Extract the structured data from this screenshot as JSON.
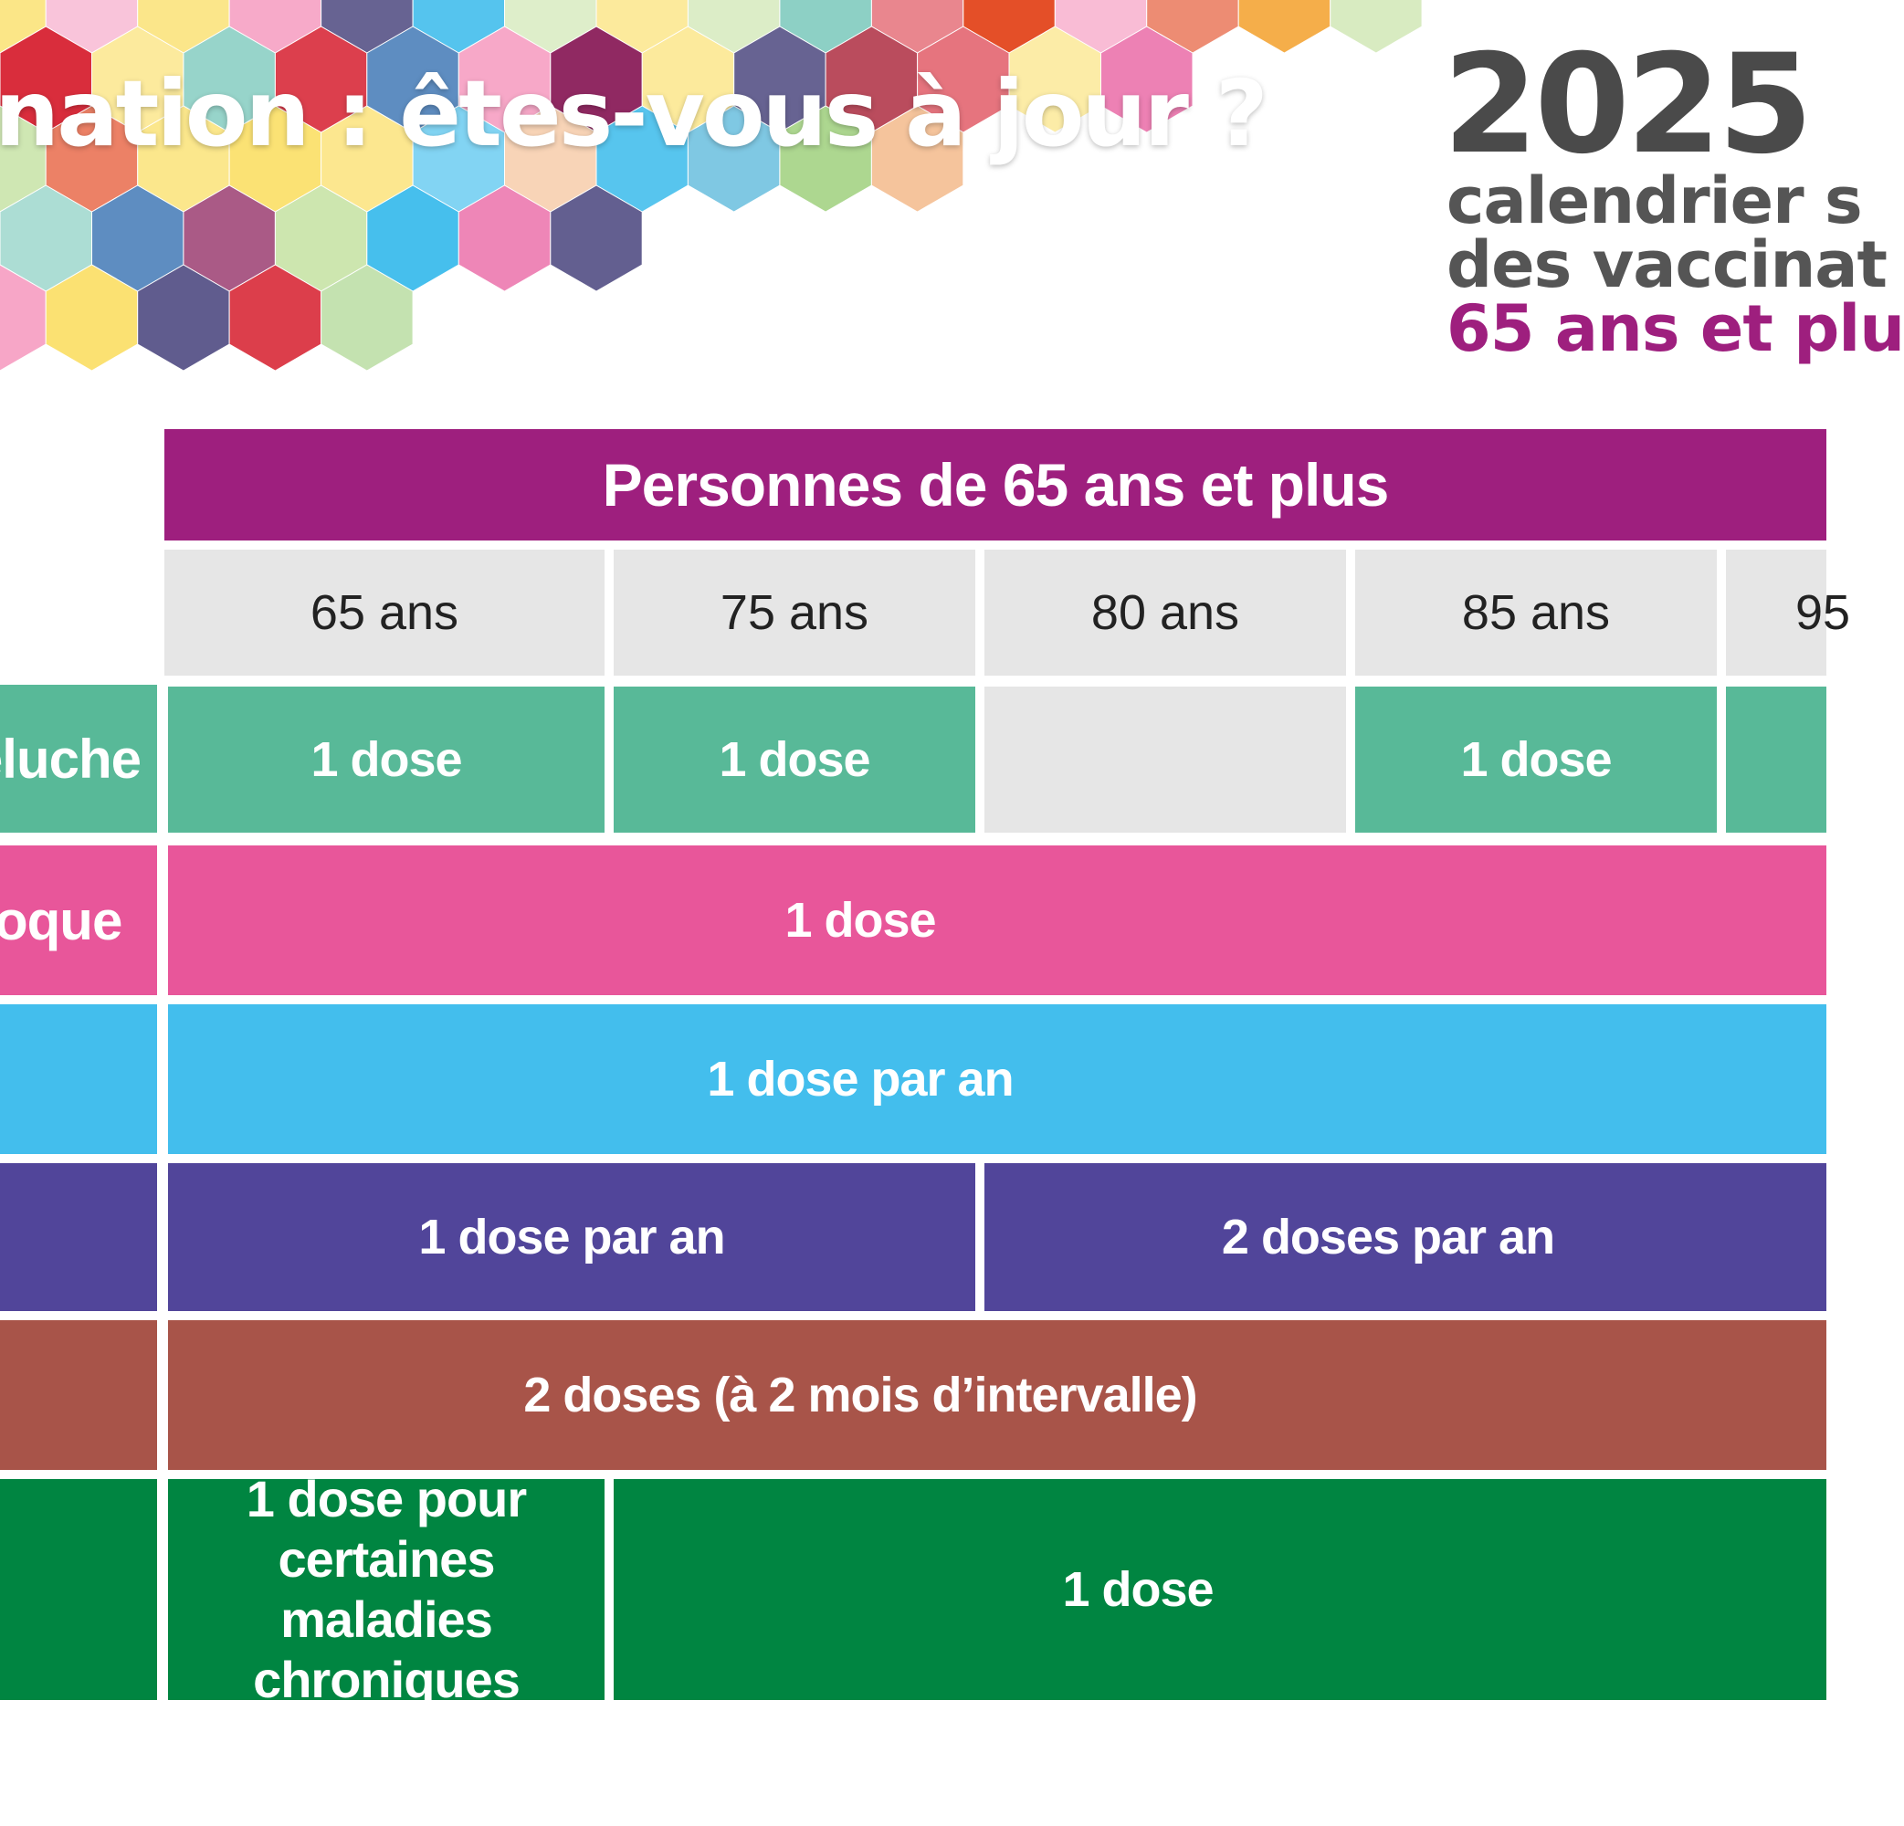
{
  "banner": {
    "title": "nation : êtes-vous à jour ?",
    "year": "2025",
    "subtitle_line1": "calendrier s",
    "subtitle_line2": "des vaccinat",
    "subtitle_line3": "65 ans et plu",
    "colors": [
      "#e8569a",
      "#f7a6c7",
      "#d92b3a",
      "#8b1e5a",
      "#43beed",
      "#1d5fa8",
      "#f39a1e",
      "#fbe06a",
      "#6cc3b4",
      "#2f2a6b",
      "#c7e3a5",
      "#f4b98a",
      "#ad2b3f",
      "#7ec8e3",
      "#a8d58a",
      "#e44d26"
    ]
  },
  "header": {
    "group_label": "Personnes de 65 ans et plus",
    "ages": [
      "65 ans",
      "75 ans",
      "80 ans",
      "85 ans",
      "95"
    ]
  },
  "rows": [
    {
      "label": "eluche",
      "color": "#58b998",
      "cells": [
        "1 dose",
        "1 dose",
        "",
        "1 dose",
        ""
      ]
    },
    {
      "label": "oque",
      "color": "#e8569a",
      "cells": [
        "1 dose"
      ]
    },
    {
      "label": "",
      "color": "#43beed",
      "cells": [
        "1 dose par an"
      ]
    },
    {
      "label": "",
      "color": "#51459a",
      "cells": [
        "1 dose par an",
        "2 doses par an"
      ]
    },
    {
      "label": "",
      "color": "#a85449",
      "cells": [
        "2 doses (à 2 mois d’intervalle)"
      ]
    },
    {
      "label": "",
      "color": "#008541",
      "cells": [
        {
          "lines": [
            "1 dose pour",
            "certaines maladies",
            "chroniques"
          ]
        },
        "1 dose"
      ]
    }
  ]
}
